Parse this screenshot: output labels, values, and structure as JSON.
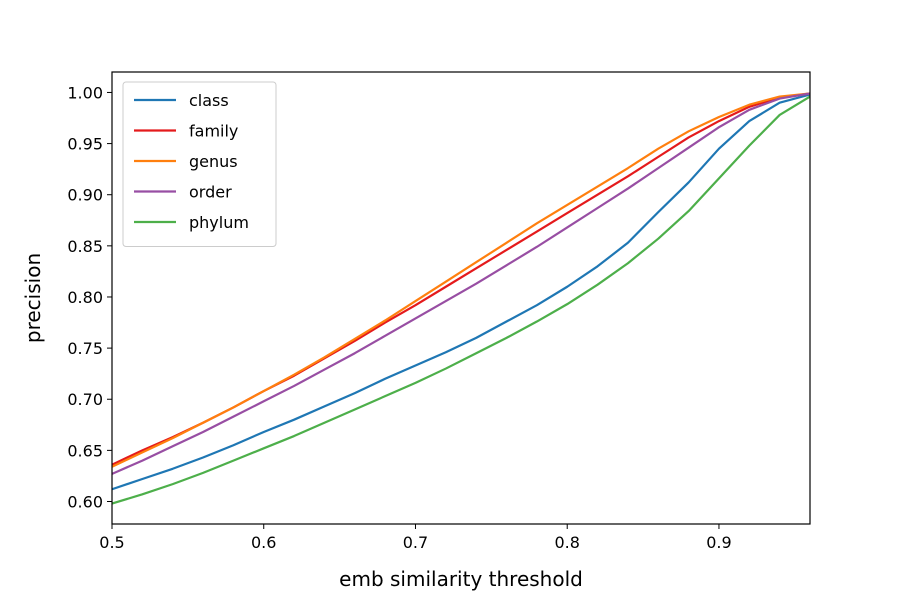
{
  "chart_data": {
    "type": "line",
    "xlabel": "emb similarity threshold",
    "ylabel": "precision",
    "xlim": [
      0.5,
      0.96
    ],
    "ylim": [
      0.578,
      1.02
    ],
    "xticks": [
      "0.5",
      "0.6",
      "0.7",
      "0.8",
      "0.9"
    ],
    "yticks": [
      "0.60",
      "0.65",
      "0.70",
      "0.75",
      "0.80",
      "0.85",
      "0.90",
      "0.95",
      "1.00"
    ],
    "grid": false,
    "legend_position": "upper-left",
    "x": [
      0.5,
      0.52,
      0.54,
      0.56,
      0.58,
      0.6,
      0.62,
      0.64,
      0.66,
      0.68,
      0.7,
      0.72,
      0.74,
      0.76,
      0.78,
      0.8,
      0.82,
      0.84,
      0.86,
      0.88,
      0.9,
      0.92,
      0.94,
      0.96
    ],
    "series": [
      {
        "name": "class",
        "color": "#1f77b4",
        "values": [
          0.612,
          0.622,
          0.632,
          0.643,
          0.655,
          0.668,
          0.68,
          0.693,
          0.706,
          0.72,
          0.733,
          0.746,
          0.76,
          0.776,
          0.792,
          0.81,
          0.83,
          0.853,
          0.883,
          0.912,
          0.945,
          0.972,
          0.99,
          0.998
        ]
      },
      {
        "name": "family",
        "color": "#e41a1c",
        "values": [
          0.636,
          0.65,
          0.663,
          0.677,
          0.692,
          0.708,
          0.723,
          0.74,
          0.757,
          0.775,
          0.792,
          0.81,
          0.828,
          0.846,
          0.864,
          0.882,
          0.9,
          0.918,
          0.937,
          0.956,
          0.972,
          0.986,
          0.995,
          0.999
        ]
      },
      {
        "name": "genus",
        "color": "#ff7f0e",
        "values": [
          0.634,
          0.648,
          0.662,
          0.677,
          0.692,
          0.708,
          0.724,
          0.741,
          0.759,
          0.777,
          0.796,
          0.815,
          0.834,
          0.853,
          0.872,
          0.89,
          0.908,
          0.926,
          0.945,
          0.962,
          0.976,
          0.988,
          0.996,
          0.999
        ]
      },
      {
        "name": "order",
        "color": "#984ea3",
        "values": [
          0.627,
          0.64,
          0.654,
          0.668,
          0.683,
          0.698,
          0.713,
          0.729,
          0.745,
          0.762,
          0.779,
          0.796,
          0.813,
          0.831,
          0.849,
          0.868,
          0.887,
          0.906,
          0.926,
          0.946,
          0.966,
          0.983,
          0.994,
          0.999
        ]
      },
      {
        "name": "phylum",
        "color": "#4daf4a",
        "values": [
          0.598,
          0.607,
          0.617,
          0.628,
          0.64,
          0.652,
          0.664,
          0.677,
          0.69,
          0.703,
          0.716,
          0.73,
          0.745,
          0.76,
          0.776,
          0.793,
          0.812,
          0.833,
          0.857,
          0.884,
          0.916,
          0.948,
          0.978,
          0.996
        ]
      }
    ]
  }
}
